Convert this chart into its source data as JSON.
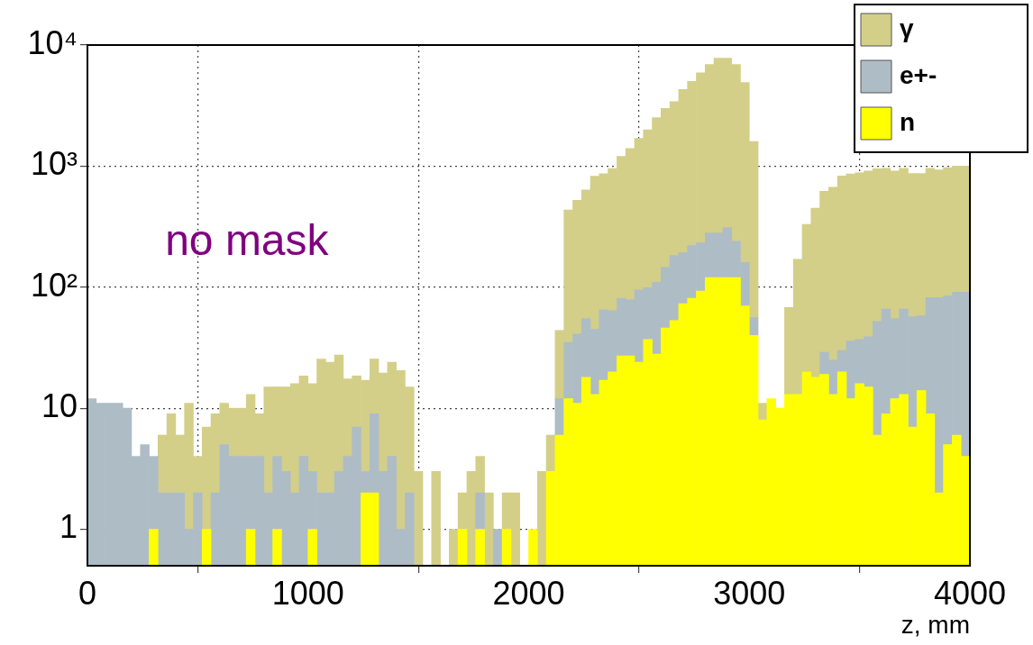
{
  "chart_data": {
    "type": "bar",
    "stacked": true,
    "x": [
      20,
      60,
      100,
      140,
      180,
      220,
      260,
      300,
      340,
      380,
      420,
      460,
      500,
      540,
      580,
      620,
      660,
      700,
      740,
      780,
      820,
      860,
      900,
      940,
      980,
      1020,
      1060,
      1100,
      1140,
      1180,
      1220,
      1260,
      1300,
      1340,
      1380,
      1420,
      1460,
      1500,
      1540,
      1580,
      1620,
      1660,
      1700,
      1740,
      1780,
      1820,
      1860,
      1900,
      1940,
      1980,
      2020,
      2060,
      2100,
      2140,
      2180,
      2220,
      2260,
      2300,
      2340,
      2380,
      2420,
      2460,
      2500,
      2540,
      2580,
      2620,
      2660,
      2700,
      2740,
      2780,
      2820,
      2860,
      2900,
      2940,
      2980,
      3020,
      3060,
      3100,
      3140,
      3180,
      3220,
      3260,
      3300,
      3340,
      3380,
      3420,
      3460,
      3500,
      3540,
      3580,
      3620,
      3660,
      3700,
      3740,
      3780,
      3820,
      3860,
      3900,
      3940,
      3980
    ],
    "series": [
      {
        "name": "n",
        "color": "#ffff00",
        "values": [
          null,
          null,
          null,
          null,
          null,
          null,
          null,
          1,
          null,
          null,
          null,
          null,
          null,
          1,
          null,
          null,
          null,
          null,
          1,
          null,
          null,
          1,
          null,
          null,
          null,
          1,
          null,
          null,
          null,
          null,
          null,
          2,
          2,
          null,
          null,
          null,
          null,
          null,
          null,
          null,
          null,
          null,
          1,
          null,
          1,
          null,
          null,
          1,
          null,
          null,
          1,
          null,
          3,
          6,
          12,
          11,
          18,
          13,
          17,
          20,
          27,
          27,
          24,
          37,
          28,
          46,
          53,
          73,
          81,
          93,
          120,
          120,
          120,
          120,
          70,
          40,
          8,
          12,
          10,
          13,
          13,
          20,
          18,
          19,
          13,
          20,
          12,
          16,
          15,
          6,
          9,
          12,
          13,
          7,
          14,
          9,
          2,
          5,
          6,
          4
        ]
      },
      {
        "name": "e+-",
        "color": "#aebcc6",
        "values": [
          12,
          11,
          11,
          11,
          10,
          4,
          5,
          3,
          2,
          2,
          2,
          1,
          2,
          null,
          2,
          5,
          4,
          4,
          3,
          4,
          2,
          3,
          3,
          2,
          4,
          2,
          2,
          2,
          3,
          4,
          7,
          1,
          7,
          3,
          4,
          1,
          2,
          null,
          null,
          null,
          null,
          null,
          null,
          null,
          1,
          null,
          1,
          null,
          null,
          null,
          null,
          null,
          null,
          6,
          23,
          30,
          37,
          32,
          48,
          44,
          54,
          52,
          71,
          62,
          82,
          100,
          130,
          120,
          140,
          140,
          160,
          160,
          190,
          120,
          90,
          16,
          null,
          null,
          null,
          null,
          null,
          null,
          null,
          10,
          12,
          10,
          24,
          21,
          24,
          46,
          57,
          43,
          53,
          50,
          44,
          73,
          80,
          80,
          85,
          87
        ]
      },
      {
        "name": "γ",
        "color": "#d3cf88",
        "values": [
          null,
          null,
          null,
          null,
          null,
          null,
          null,
          null,
          4,
          7,
          4,
          10,
          2,
          6,
          7,
          6,
          6,
          6,
          9,
          5,
          13,
          11,
          12,
          14,
          14.5,
          13,
          23.5,
          22,
          24.5,
          13.5,
          11.5,
          14,
          16.5,
          16.5,
          20,
          19.5,
          13,
          3,
          null,
          3,
          null,
          1,
          1,
          3,
          2,
          2,
          null,
          1,
          2,
          null,
          null,
          3,
          3,
          32,
          400,
          480,
          580,
          780,
          800,
          890,
          1120,
          1320,
          1600,
          1900,
          2400,
          2850,
          3220,
          4110,
          4780,
          5670,
          6620,
          7520,
          7490,
          6660,
          4740,
          1540,
          3,
          null,
          null,
          55,
          157,
          310,
          432,
          591,
          645,
          800,
          824,
          843,
          871,
          898,
          894,
          855,
          894,
          813,
          812,
          878,
          848,
          885,
          909,
          909
        ]
      }
    ],
    "xlim": [
      0,
      4000
    ],
    "xticks": [
      0,
      1000,
      2000,
      3000,
      4000
    ],
    "ylim": [
      0.5,
      10000
    ],
    "yticks": [
      1,
      10,
      {
        "value": 100,
        "label": "10²"
      },
      {
        "value": 1000,
        "label": "10³"
      },
      {
        "value": 10000,
        "label": "10⁴"
      }
    ],
    "log": "y",
    "grid": true,
    "legend": "top right",
    "xlabel": "z, mm",
    "annotations": [
      "no mask"
    ]
  }
}
